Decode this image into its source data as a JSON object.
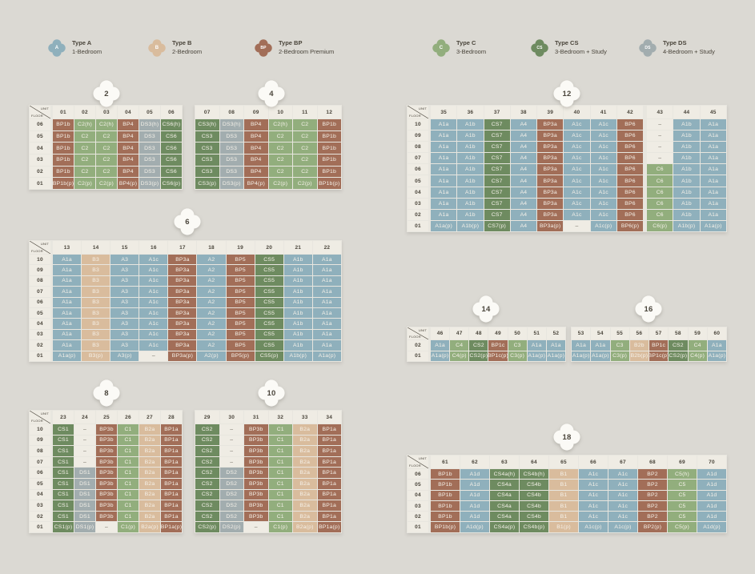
{
  "colors": {
    "background": "#DBD9D3",
    "grid_line": "#E8E6DF",
    "header_bg": "#EFECE4",
    "header_text": "#49443A",
    "cell_text": "#F5F1E9",
    "empty_bg": "#EFECE4",
    "badge_bg": "#FBFAF6",
    "types": {
      "A": "#8FB0BC",
      "B": "#D9BC9D",
      "BP": "#A26E58",
      "C": "#92AE7D",
      "CS": "#6E8B60",
      "DS": "#A2ADAF"
    }
  },
  "corner": {
    "top": "UNIT",
    "bottom": "FLOOR"
  },
  "legend": [
    {
      "code": "A",
      "type": "A",
      "title": "Type A",
      "subtitle": "1-Bedroom"
    },
    {
      "code": "B",
      "type": "B",
      "title": "Type B",
      "subtitle": "2-Bedroom"
    },
    {
      "code": "BP",
      "type": "BP",
      "title": "Type BP",
      "subtitle": "2-Bedroom Premium"
    },
    {
      "code": "C",
      "type": "C",
      "title": "Type C",
      "subtitle": "3-Bedroom"
    },
    {
      "code": "CS",
      "type": "CS",
      "title": "Type CS",
      "subtitle": "3-Bedroom + Study"
    },
    {
      "code": "DS",
      "type": "DS",
      "title": "Type DS",
      "subtitle": "4-Bedroom + Study"
    }
  ],
  "blocks": [
    {
      "block": "2",
      "units": [
        "01",
        "02",
        "03",
        "04",
        "05",
        "06"
      ],
      "floors": [
        "06",
        "05",
        "04",
        "03",
        "02",
        "01"
      ],
      "rows": [
        [
          "BP1b",
          "C2(h)",
          "C2(h)",
          "BP4",
          "DS3(h)",
          "CS6(h)"
        ],
        [
          "BP1b",
          "C2",
          "C2",
          "BP4",
          "DS3",
          "CS6"
        ],
        [
          "BP1b",
          "C2",
          "C2",
          "BP4",
          "DS3",
          "CS6"
        ],
        [
          "BP1b",
          "C2",
          "C2",
          "BP4",
          "DS3",
          "CS6"
        ],
        [
          "BP1b",
          "C2",
          "C2",
          "BP4",
          "DS3",
          "CS6"
        ],
        [
          "BP1b(p)",
          "C2(p)",
          "C2(p)",
          "BP4(p)",
          "DS3(p)",
          "CS6(p)"
        ]
      ]
    },
    {
      "block": "4",
      "units": [
        "07",
        "08",
        "09",
        "10",
        "11",
        "12"
      ],
      "rows": [
        [
          "CS3(h)",
          "DS3(h)",
          "BP4",
          "C2(h)",
          "C2",
          "BP1b"
        ],
        [
          "CS3",
          "DS3",
          "BP4",
          "C2",
          "C2",
          "BP1b"
        ],
        [
          "CS3",
          "DS3",
          "BP4",
          "C2",
          "C2",
          "BP1b"
        ],
        [
          "CS3",
          "DS3",
          "BP4",
          "C2",
          "C2",
          "BP1b"
        ],
        [
          "CS3",
          "DS3",
          "BP4",
          "C2",
          "C2",
          "BP1b"
        ],
        [
          "CS3(p)",
          "DS3(p)",
          "BP4(p)",
          "C2(p)",
          "C2(p)",
          "BP1b(p)"
        ]
      ]
    },
    {
      "block": "12",
      "units": [
        "35",
        "36",
        "37",
        "38",
        "39",
        "40",
        "41",
        "42",
        "43",
        "44",
        "45"
      ],
      "floors": [
        "10",
        "09",
        "08",
        "07",
        "06",
        "05",
        "04",
        "03",
        "02",
        "01"
      ],
      "rows": [
        [
          "A1a",
          "A1b",
          "CS7",
          "A4",
          "BP3a",
          "A1c",
          "A1c",
          "BP6",
          "–",
          "A1b",
          "A1a"
        ],
        [
          "A1a",
          "A1b",
          "CS7",
          "A4",
          "BP3a",
          "A1c",
          "A1c",
          "BP6",
          "–",
          "A1b",
          "A1a"
        ],
        [
          "A1a",
          "A1b",
          "CS7",
          "A4",
          "BP3a",
          "A1c",
          "A1c",
          "BP6",
          "–",
          "A1b",
          "A1a"
        ],
        [
          "A1a",
          "A1b",
          "CS7",
          "A4",
          "BP3a",
          "A1c",
          "A1c",
          "BP6",
          "–",
          "A1b",
          "A1a"
        ],
        [
          "A1a",
          "A1b",
          "CS7",
          "A4",
          "BP3a",
          "A1c",
          "A1c",
          "BP6",
          "C6",
          "A1b",
          "A1a"
        ],
        [
          "A1a",
          "A1b",
          "CS7",
          "A4",
          "BP3a",
          "A1c",
          "A1c",
          "BP6",
          "C6",
          "A1b",
          "A1a"
        ],
        [
          "A1a",
          "A1b",
          "CS7",
          "A4",
          "BP3a",
          "A1c",
          "A1c",
          "BP6",
          "C6",
          "A1b",
          "A1a"
        ],
        [
          "A1a",
          "A1b",
          "CS7",
          "A4",
          "BP3a",
          "A1c",
          "A1c",
          "BP6",
          "C6",
          "A1b",
          "A1a"
        ],
        [
          "A1a",
          "A1b",
          "CS7",
          "A4",
          "BP3a",
          "A1c",
          "A1c",
          "BP6",
          "C6",
          "A1b",
          "A1a"
        ],
        [
          "A1a(p)",
          "A1b(p)",
          "CS7(p)",
          "A4",
          "BP3a(p)",
          "–",
          "A1c(p)",
          "BP6(p)",
          "C6(p)",
          "A1b(p)",
          "A1a(p)"
        ]
      ]
    },
    {
      "block": "6",
      "units": [
        "13",
        "14",
        "15",
        "16",
        "17",
        "18",
        "19",
        "20",
        "21",
        "22"
      ],
      "floors": [
        "10",
        "09",
        "08",
        "07",
        "06",
        "05",
        "04",
        "03",
        "02",
        "01"
      ],
      "rows": [
        [
          "A1a",
          "B3",
          "A3",
          "A1c",
          "BP3a",
          "A2",
          "BP5",
          "CS5",
          "A1b",
          "A1a"
        ],
        [
          "A1a",
          "B3",
          "A3",
          "A1c",
          "BP3a",
          "A2",
          "BP5",
          "CS5",
          "A1b",
          "A1a"
        ],
        [
          "A1a",
          "B3",
          "A3",
          "A1c",
          "BP3a",
          "A2",
          "BP5",
          "CS5",
          "A1b",
          "A1a"
        ],
        [
          "A1a",
          "B3",
          "A3",
          "A1c",
          "BP3a",
          "A2",
          "BP5",
          "CS5",
          "A1b",
          "A1a"
        ],
        [
          "A1a",
          "B3",
          "A3",
          "A1c",
          "BP3a",
          "A2",
          "BP5",
          "CS5",
          "A1b",
          "A1a"
        ],
        [
          "A1a",
          "B3",
          "A3",
          "A1c",
          "BP3a",
          "A2",
          "BP5",
          "CS5",
          "A1b",
          "A1a"
        ],
        [
          "A1a",
          "B3",
          "A3",
          "A1c",
          "BP3a",
          "A2",
          "BP5",
          "CS5",
          "A1b",
          "A1a"
        ],
        [
          "A1a",
          "B3",
          "A3",
          "A1c",
          "BP3a",
          "A2",
          "BP5",
          "CS5",
          "A1b",
          "A1a"
        ],
        [
          "A1a",
          "B3",
          "A3",
          "A1c",
          "BP3a",
          "A2",
          "BP5",
          "CS5",
          "A1b",
          "A1a"
        ],
        [
          "A1a(p)",
          "B3(p)",
          "A3(p)",
          "–",
          "BP3a(p)",
          "A2(p)",
          "BP5(p)",
          "CS5(p)",
          "A1b(p)",
          "A1a(p)"
        ]
      ]
    },
    {
      "block": "14",
      "units": [
        "46",
        "47",
        "48",
        "49",
        "50",
        "51",
        "52"
      ],
      "floors": [
        "02",
        "01"
      ],
      "rows": [
        [
          "A1a",
          "C4",
          "CS2",
          "BP1c",
          "C3",
          "A1a",
          "A1a"
        ],
        [
          "A1a(p)",
          "C4(p)",
          "CS2(p)",
          "BP1c(p)",
          "C3(p)",
          "A1a(p)",
          "A1a(p)"
        ]
      ]
    },
    {
      "block": "16",
      "units": [
        "53",
        "54",
        "55",
        "56",
        "57",
        "58",
        "59",
        "60"
      ],
      "rows": [
        [
          "A1a",
          "A1a",
          "C3",
          "B2b",
          "BP1c",
          "CS2",
          "C4",
          "A1a"
        ],
        [
          "A1a(p)",
          "A1a(p)",
          "C3(p)",
          "B2b(p)",
          "BP1c(p)",
          "CS2(p)",
          "C4(p)",
          "A1a(p)"
        ]
      ]
    },
    {
      "block": "8",
      "units": [
        "23",
        "24",
        "25",
        "26",
        "27",
        "28"
      ],
      "floors": [
        "10",
        "09",
        "08",
        "07",
        "06",
        "05",
        "04",
        "03",
        "02",
        "01"
      ],
      "rows": [
        [
          "CS1",
          "–",
          "BP3b",
          "C1",
          "B2a",
          "BP1a"
        ],
        [
          "CS1",
          "–",
          "BP3b",
          "C1",
          "B2a",
          "BP1a"
        ],
        [
          "CS1",
          "–",
          "BP3b",
          "C1",
          "B2a",
          "BP1a"
        ],
        [
          "CS1",
          "–",
          "BP3b",
          "C1",
          "B2a",
          "BP1a"
        ],
        [
          "CS1",
          "DS1",
          "BP3b",
          "C1",
          "B2a",
          "BP1a"
        ],
        [
          "CS1",
          "DS1",
          "BP3b",
          "C1",
          "B2a",
          "BP1a"
        ],
        [
          "CS1",
          "DS1",
          "BP3b",
          "C1",
          "B2a",
          "BP1a"
        ],
        [
          "CS1",
          "DS1",
          "BP3b",
          "C1",
          "B2a",
          "BP1a"
        ],
        [
          "CS1",
          "DS1",
          "BP3b",
          "C1",
          "B2a",
          "BP1a"
        ],
        [
          "CS1(p)",
          "DS1(p)",
          "–",
          "C1(p)",
          "B2a(p)",
          "BP1a(p)"
        ]
      ]
    },
    {
      "block": "10",
      "units": [
        "29",
        "30",
        "31",
        "32",
        "33",
        "34"
      ],
      "rows": [
        [
          "CS2",
          "–",
          "BP3b",
          "C1",
          "B2a",
          "BP1a"
        ],
        [
          "CS2",
          "–",
          "BP3b",
          "C1",
          "B2a",
          "BP1a"
        ],
        [
          "CS2",
          "–",
          "BP3b",
          "C1",
          "B2a",
          "BP1a"
        ],
        [
          "CS2",
          "–",
          "BP3b",
          "C1",
          "B2a",
          "BP1a"
        ],
        [
          "CS2",
          "DS2",
          "BP3b",
          "C1",
          "B2a",
          "BP1a"
        ],
        [
          "CS2",
          "DS2",
          "BP3b",
          "C1",
          "B2a",
          "BP1a"
        ],
        [
          "CS2",
          "DS2",
          "BP3b",
          "C1",
          "B2a",
          "BP1a"
        ],
        [
          "CS2",
          "DS2",
          "BP3b",
          "C1",
          "B2a",
          "BP1a"
        ],
        [
          "CS2",
          "DS2",
          "BP3b",
          "C1",
          "B2a",
          "BP1a"
        ],
        [
          "CS2(p)",
          "DS2(p)",
          "–",
          "C1(p)",
          "B2a(p)",
          "BP1a(p)"
        ]
      ]
    },
    {
      "block": "18",
      "units": [
        "61",
        "62",
        "63",
        "64",
        "65",
        "66",
        "67",
        "68",
        "69",
        "70"
      ],
      "floors": [
        "06",
        "05",
        "04",
        "03",
        "02",
        "01"
      ],
      "rows": [
        [
          "BP1b",
          "A1d",
          "CS4a(h)",
          "CS4b(h)",
          "B1",
          "A1c",
          "A1c",
          "BP2",
          "C5(h)",
          "A1d"
        ],
        [
          "BP1b",
          "A1d",
          "CS4a",
          "CS4b",
          "B1",
          "A1c",
          "A1c",
          "BP2",
          "C5",
          "A1d"
        ],
        [
          "BP1b",
          "A1d",
          "CS4a",
          "CS4b",
          "B1",
          "A1c",
          "A1c",
          "BP2",
          "C5",
          "A1d"
        ],
        [
          "BP1b",
          "A1d",
          "CS4a",
          "CS4b",
          "B1",
          "A1c",
          "A1c",
          "BP2",
          "C5",
          "A1d"
        ],
        [
          "BP1b",
          "A1d",
          "CS4a",
          "CS4b",
          "B1",
          "A1c",
          "A1c",
          "BP2",
          "C5",
          "A1d"
        ],
        [
          "BP1b(p)",
          "A1d(p)",
          "CS4a(p)",
          "CS4b(p)",
          "B1(p)",
          "A1c(p)",
          "A1c(p)",
          "BP2(p)",
          "C5(p)",
          "A1d(p)"
        ]
      ]
    }
  ]
}
